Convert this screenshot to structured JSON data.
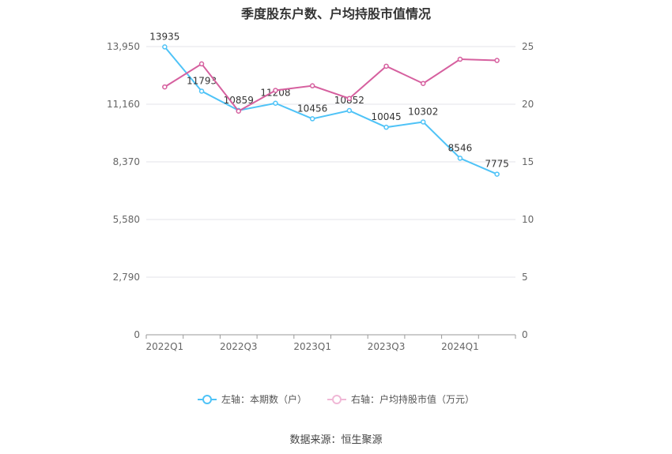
{
  "chart_data": {
    "type": "line",
    "title": "季度股东户数、户均持股市值情况",
    "categories": [
      "2022Q1",
      "2022Q2",
      "2022Q3",
      "2022Q4",
      "2023Q1",
      "2023Q2",
      "2023Q3",
      "2023Q4",
      "2024Q1",
      "2024Q2"
    ],
    "x_tick_labels": [
      "2022Q1",
      "2022Q3",
      "2023Q1",
      "2023Q3",
      "2024Q1"
    ],
    "left_axis": {
      "ticks": [
        "0",
        "2,790",
        "5,580",
        "8,370",
        "11,160",
        "13,950"
      ],
      "range": [
        0,
        13950
      ]
    },
    "right_axis": {
      "ticks": [
        "0",
        "5",
        "10",
        "15",
        "20",
        "25"
      ],
      "range": [
        0,
        25
      ]
    },
    "series": [
      {
        "name": "左轴：本期数（户）",
        "axis": "left",
        "color": "#4fc3f7",
        "values": [
          13935,
          11793,
          10859,
          11208,
          10456,
          10852,
          10045,
          10302,
          8546,
          7775
        ],
        "labels": [
          "13935",
          "11793",
          "10859",
          "11208",
          "10456",
          "10852",
          "10045",
          "10302",
          "8546",
          "7775"
        ]
      },
      {
        "name": "右轴：户均持股市值（万元）",
        "axis": "right",
        "color": "#d6609f",
        "values": [
          21.5,
          23.5,
          19.4,
          21.2,
          21.6,
          20.5,
          23.3,
          21.8,
          23.9,
          23.8
        ]
      }
    ],
    "grid": true,
    "legend_position": "bottom"
  },
  "legend": {
    "left_label": "左轴：本期数（户）",
    "right_label": "右轴：户均持股市值（万元）"
  },
  "source": "数据来源：恒生聚源"
}
